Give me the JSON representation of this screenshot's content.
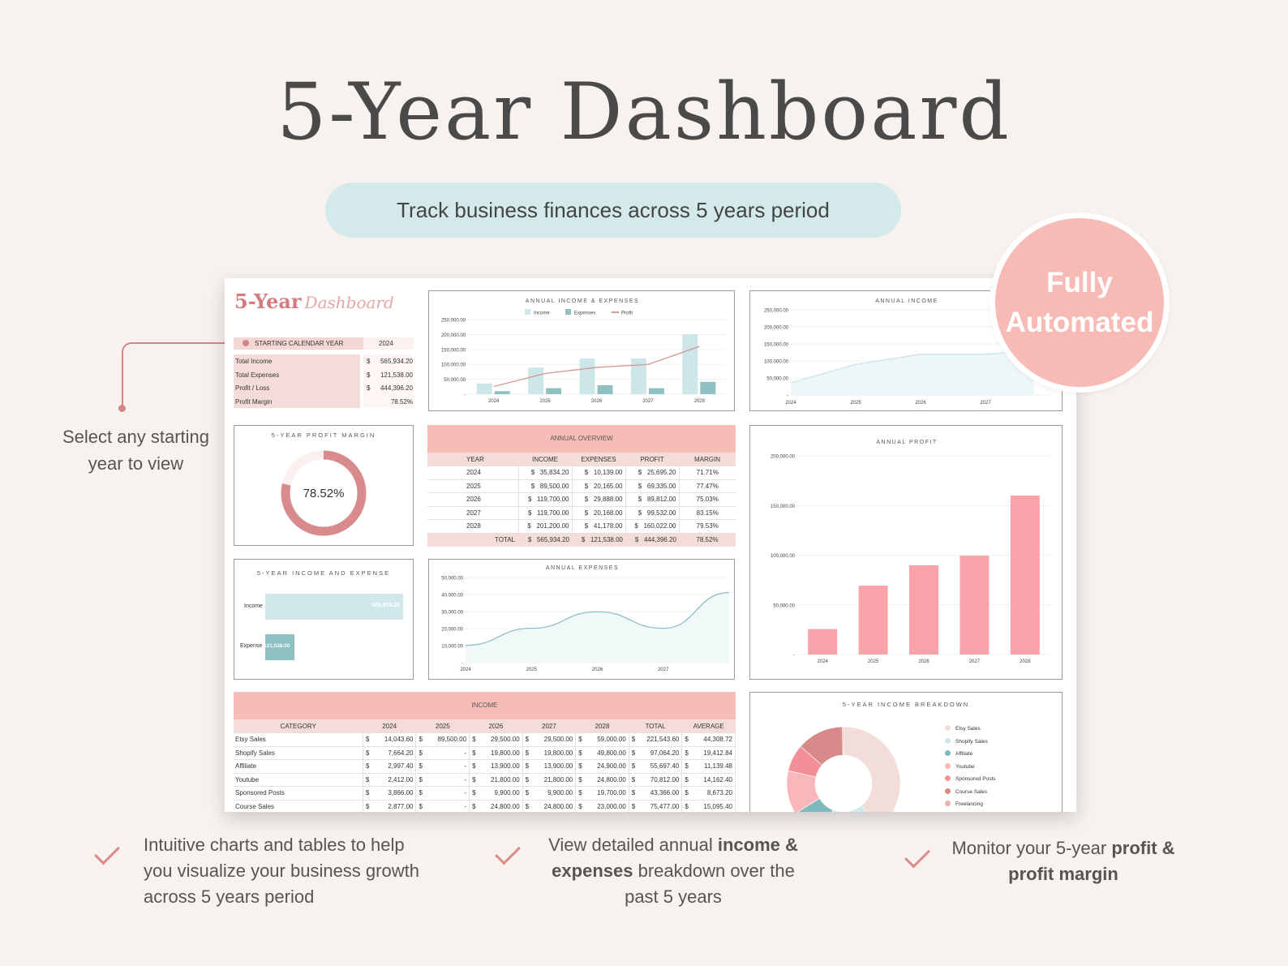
{
  "title": "5-Year Dashboard",
  "subtitle": "Track business finances across 5 years period",
  "badge": {
    "line1": "Fully",
    "line2": "Automated"
  },
  "callout": "Select any starting year to view",
  "features": [
    {
      "pre": "Intuitive charts and tables to help you visualize your business growth across 5 years period",
      "b1": "",
      "mid": "",
      "b2": "",
      "post": ""
    },
    {
      "pre": "View detailed annual ",
      "b1": "income & expenses",
      "mid": " breakdown over the past 5 years",
      "b2": "",
      "post": ""
    },
    {
      "pre": "Monitor your 5-year ",
      "b1": "profit & profit margin",
      "mid": "",
      "b2": "",
      "post": ""
    }
  ],
  "sheet": {
    "logo_main": "5-Year",
    "logo_script": "Dashboard",
    "start_label": "STARTING CALENDAR YEAR",
    "start_value": "2024",
    "summary": [
      {
        "label": "Total Income",
        "cur": "$",
        "value": "565,934.20"
      },
      {
        "label": "Total Expenses",
        "cur": "$",
        "value": "121,538.00"
      },
      {
        "label": "Profit / Loss",
        "cur": "$",
        "value": "444,396.20"
      },
      {
        "label": "Profit Margin",
        "cur": "",
        "value": "78.52%"
      }
    ],
    "margin_panel": {
      "title": "5-YEAR PROFIT MARGIN",
      "value": "78.52%",
      "fraction": 0.7852
    },
    "ie_panel": {
      "title": "5-YEAR INCOME AND EXPENSE",
      "income_label": "Income",
      "income_value": "565,934.20",
      "expense_label": "Expense",
      "expense_value": "121,538.00"
    },
    "overview": {
      "title": "ANNUAL OVERVIEW",
      "headers": [
        "YEAR",
        "INCOME",
        "EXPENSES",
        "PROFIT",
        "MARGIN"
      ],
      "rows": [
        [
          "2024",
          "35,834.20",
          "10,139.00",
          "25,695.20",
          "71.71%"
        ],
        [
          "2025",
          "89,500.00",
          "20,165.00",
          "69,335.00",
          "77.47%"
        ],
        [
          "2026",
          "119,700.00",
          "29,888.00",
          "89,812.00",
          "75.03%"
        ],
        [
          "2027",
          "119,700.00",
          "20,168.00",
          "99,532.00",
          "83.15%"
        ],
        [
          "2028",
          "201,200.00",
          "41,178.00",
          "160,022.00",
          "79.53%"
        ]
      ],
      "total": [
        "TOTAL",
        "565,934.20",
        "121,538.00",
        "444,396.20",
        "78.52%"
      ],
      "cur": "$"
    },
    "income_table": {
      "title": "INCOME",
      "headers": [
        "CATEGORY",
        "2024",
        "2025",
        "2026",
        "2027",
        "2028",
        "TOTAL",
        "AVERAGE"
      ],
      "rows": [
        [
          "Etsy Sales",
          "14,043.60",
          "89,500.00",
          "29,500.00",
          "29,500.00",
          "59,000.00",
          "221,543.60",
          "44,308.72"
        ],
        [
          "Shopify Sales",
          "7,664.20",
          "-",
          "19,800.00",
          "19,800.00",
          "49,800.00",
          "97,064.20",
          "19,412.84"
        ],
        [
          "Affiliate",
          "2,997.40",
          "-",
          "13,900.00",
          "13,900.00",
          "24,900.00",
          "55,697.40",
          "11,139.48"
        ],
        [
          "Youtube",
          "2,412.00",
          "-",
          "21,800.00",
          "21,800.00",
          "24,800.00",
          "70,812.00",
          "14,162.40"
        ],
        [
          "Sponsored Posts",
          "3,866.00",
          "-",
          "9,900.00",
          "9,900.00",
          "19,700.00",
          "43,366.00",
          "8,673.20"
        ],
        [
          "Course Sales",
          "2,877.00",
          "-",
          "24,800.00",
          "24,800.00",
          "23,000.00",
          "75,477.00",
          "15,095.40"
        ]
      ],
      "cur": "$"
    },
    "breakdown": {
      "title": "5-YEAR INCOME BREAKDOWN",
      "legend": [
        "Etsy Sales",
        "Shopify Sales",
        "Affiliate",
        "Youtube",
        "Sponsored Posts",
        "Course Sales",
        "Freelancing"
      ],
      "colors": [
        "#f3ddd8",
        "#cfe6ea",
        "#7fb9bd",
        "#f7b7bb",
        "#f28f97",
        "#d88a8a",
        "#e8b1a9"
      ]
    }
  },
  "chart_data": [
    {
      "type": "bar",
      "title": "ANNUAL INCOME & EXPENSES",
      "categories": [
        "2024",
        "2025",
        "2026",
        "2027",
        "2028"
      ],
      "series": [
        {
          "name": "Income",
          "values": [
            35834.2,
            89500,
            119700,
            119700,
            201200
          ]
        },
        {
          "name": "Expenses",
          "values": [
            10139,
            20165,
            29888,
            20168,
            41178
          ]
        },
        {
          "name": "Profit",
          "values": [
            25695.2,
            69335,
            89812,
            99532,
            160022
          ]
        }
      ],
      "yticks": [
        "250,000.00",
        "200,000.00",
        "150,000.00",
        "100,000.00",
        "50,000.00",
        "-"
      ],
      "ylim": [
        0,
        250000
      ],
      "colors": {
        "Income": "#cde6e8",
        "Expenses": "#8fc0c2",
        "Profit": "#d49595"
      }
    },
    {
      "type": "line",
      "title": "ANNUAL INCOME",
      "categories": [
        "2024",
        "2025",
        "2026",
        "2027"
      ],
      "values": [
        35834.2,
        89500,
        119700,
        119700
      ],
      "yticks": [
        "250,000.00",
        "200,000.00",
        "150,000.00",
        "100,000.00",
        "50,000.00",
        "-"
      ],
      "ylim": [
        0,
        250000
      ]
    },
    {
      "type": "area",
      "title": "ANNUAL EXPENSES",
      "categories": [
        "2024",
        "2025",
        "2026",
        "2027",
        "2028"
      ],
      "values": [
        10139,
        20165,
        29888,
        20168,
        41178
      ],
      "yticks": [
        "50,000.00",
        "40,000.00",
        "30,000.00",
        "20,000.00",
        "10,000.00",
        "-"
      ],
      "ylim": [
        0,
        50000
      ]
    },
    {
      "type": "bar",
      "title": "ANNUAL PROFIT",
      "categories": [
        "2024",
        "2025",
        "2026",
        "2027",
        "2028"
      ],
      "values": [
        25695.2,
        69335,
        89812,
        99532,
        160022
      ],
      "yticks": [
        "200,000.00",
        "150,000.00",
        "100,000.00",
        "50,000.00",
        "-"
      ],
      "ylim": [
        0,
        200000
      ],
      "color": "#f8a3a9"
    },
    {
      "type": "pie",
      "title": "5-YEAR INCOME BREAKDOWN",
      "labels": [
        "Etsy Sales",
        "Shopify Sales",
        "Affiliate",
        "Youtube",
        "Sponsored Posts",
        "Course Sales",
        "Freelancing"
      ],
      "values": [
        221543.6,
        97064.2,
        55697.4,
        70812,
        43366,
        75477,
        2000
      ]
    }
  ]
}
